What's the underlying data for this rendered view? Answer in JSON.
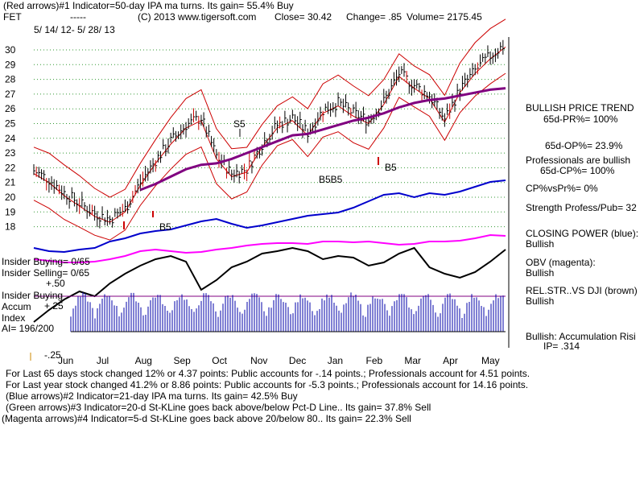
{
  "header": {
    "line1": "(Red arrows)#1 Indicator=50-day IPA ma turns. Its gain= 55.4% Buy",
    "ticker": "FET",
    "dashes": "-----",
    "copyright": "(C) 2013 www.tigersoft.com",
    "close": "Close=  30.42",
    "change": "Change= .85",
    "volume": "Volume= 2175.45",
    "range": "5/ 14/ 12-  5/ 28/ 13"
  },
  "right_panel": {
    "trend": "BULLISH PRICE TREND",
    "pr": "65d-PR%= 100%",
    "op": "65d-OP%= 23.9%",
    "pros1": "Professionals are bullish",
    "pros2": "65d-CP%= 100%",
    "cpvspr": "CP%vsPr%=  0%",
    "strength": "Strength Profess/Pub= 32",
    "cp_label": "CLOSING POWER (blue):",
    "cp_val": "Bullish",
    "obv_label": "OBV (magenta):",
    "obv_val": "Bullish",
    "rel_label": "REL.STR..VS DJI (brown)",
    "rel_val": "Bullish",
    "accum_label": "Bullish: Accumulation Risi",
    "ip": "IP=  .314"
  },
  "left_labels": {
    "insider_buying": "Insider Buying= 0/65",
    "insider_selling": "Insider Selling= 0/65",
    "plus50": "+.50",
    "insider_buying2": "Insider Buying",
    "accum": "Accum",
    "plus25": "+.25",
    "index": "Index",
    "ai": "AI= 196/200",
    "minus25": "-.25"
  },
  "footer": {
    "line1": "For Last 65 days stock changed  12% or  4.37 points:  Public accounts for -.14 points.;  Professionals account for  4.51 points.",
    "line2": "For Last year stock changed  41.2% or  8.86 points:  Public accounts for -5.3 points.;  Professionals account for  14.16 points.",
    "line3": "(Blue arrows)#2 Indicator=21-day IPA ma turns. Its gain= 42.5% Buy",
    "line4": "(Green arrows)#3 Indicator=20-d St-KLine goes back above/below Pct-D Line.. Its gain= 37.8% Sell",
    "line5": "(Magenta arrows)#4 Indicator=5-d St-KLine goes back above 20/below 80.. Its gain= 22.3% Sell"
  },
  "colors": {
    "price": "#000000",
    "band": "#cc0000",
    "ma": "#800080",
    "closing_power": "#0000cc",
    "obv": "#ff00ff",
    "rel_strength": "#000000",
    "accum": "#0000aa",
    "grid": "#339933"
  },
  "chart_data": {
    "type": "line",
    "title": "FET  5/14/12 - 5/28/13",
    "y_ticks": [
      30,
      29,
      28,
      27,
      26,
      25,
      24,
      23,
      22,
      21,
      20,
      19,
      18
    ],
    "ylim": [
      17.5,
      30.5
    ],
    "x_ticks": [
      "Jun",
      "Jul",
      "Aug",
      "Sep",
      "Oct",
      "Nov",
      "Dec",
      "Jan",
      "Feb",
      "Mar",
      "Apr",
      "May"
    ],
    "annotations": [
      {
        "text": "B5",
        "month": "Jul"
      },
      {
        "text": "S5",
        "month": "Oct"
      },
      {
        "text": "B5B5",
        "month": "Jan"
      },
      {
        "text": "B5",
        "month": "Feb"
      }
    ],
    "series": [
      {
        "name": "Price",
        "values": [
          21.8,
          21.2,
          20.3,
          19.6,
          18.9,
          18.5,
          19.2,
          21.0,
          22.5,
          23.8,
          24.9,
          25.4,
          22.8,
          21.6,
          21.9,
          23.6,
          24.9,
          25.4,
          24.4,
          25.9,
          26.4,
          25.7,
          25.2,
          26.5,
          28.4,
          27.6,
          26.9,
          25.3,
          27.3,
          28.6,
          29.6,
          30.4
        ]
      },
      {
        "name": "50-day MA",
        "values": [
          null,
          null,
          null,
          null,
          null,
          null,
          null,
          20.5,
          20.9,
          21.4,
          21.9,
          22.2,
          22.3,
          22.6,
          23.0,
          23.4,
          23.8,
          24.2,
          24.3,
          24.6,
          24.9,
          25.2,
          25.4,
          25.7,
          26.1,
          26.4,
          26.6,
          26.7,
          26.9,
          27.1,
          27.3,
          27.4
        ]
      }
    ],
    "lower_panels": [
      "Closing Power (blue)",
      "OBV (magenta)",
      "Rel. Str. vs DJI",
      "Accumulation Index"
    ]
  }
}
